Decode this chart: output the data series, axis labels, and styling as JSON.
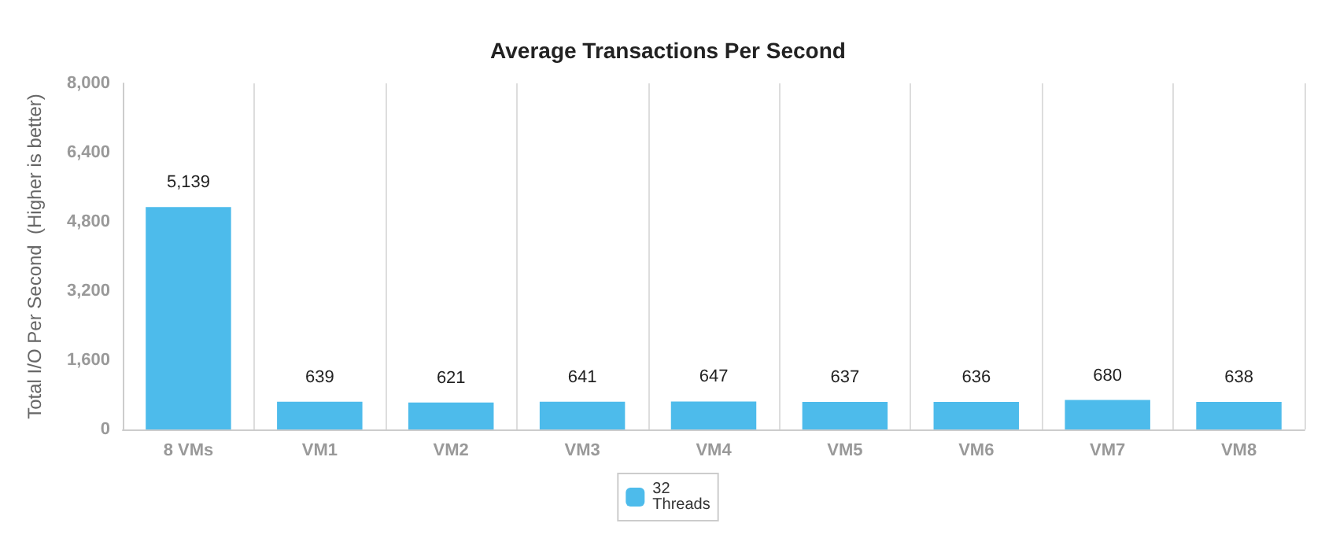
{
  "chart_data": {
    "type": "bar",
    "title": "Average Transactions Per Second",
    "ylabel": "Total I/O Per Second  (Higher is better)",
    "categories": [
      "8 VMs",
      "VM1",
      "VM2",
      "VM3",
      "VM4",
      "VM5",
      "VM6",
      "VM7",
      "VM8"
    ],
    "series": [
      {
        "name": "32 Threads",
        "color": "#4dbbeb",
        "values": [
          5139,
          639,
          621,
          641,
          647,
          637,
          636,
          680,
          638
        ],
        "value_labels": [
          "5,139",
          "639",
          "621",
          "641",
          "647",
          "637",
          "636",
          "680",
          "638"
        ]
      }
    ],
    "ylim": [
      0,
      8000
    ],
    "yticks": [
      {
        "value": 0,
        "label": "0"
      },
      {
        "value": 1600,
        "label": "1,600"
      },
      {
        "value": 3200,
        "label": "3,200"
      },
      {
        "value": 4800,
        "label": "4,800"
      },
      {
        "value": 6400,
        "label": "6,400"
      },
      {
        "value": 8000,
        "label": "8,000"
      }
    ],
    "grid": "x",
    "legend": "bottom"
  }
}
